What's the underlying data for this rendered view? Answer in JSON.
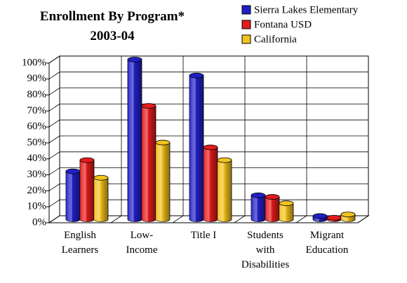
{
  "chart_data": {
    "type": "bar3d",
    "title": "Enrollment By Program*\n2003-04",
    "categories": [
      "English\nLearners",
      "Low-\nIncome",
      "Title I",
      "Students\nwith\nDisabilities",
      "Migrant\nEducation"
    ],
    "series": [
      {
        "name": "Sierra Lakes Elementary",
        "color": "#2020c8",
        "values": [
          30,
          100,
          90,
          15,
          2
        ]
      },
      {
        "name": "Fontana USD",
        "color": "#e41c1c",
        "values": [
          37,
          71,
          45,
          14,
          1
        ]
      },
      {
        "name": "California",
        "color": "#f2c21e",
        "values": [
          26,
          48,
          37,
          10,
          3
        ]
      }
    ],
    "ylim": [
      0,
      100
    ],
    "yticks": [
      {
        "value": 0,
        "label": "0%"
      },
      {
        "value": 10,
        "label": "10%"
      },
      {
        "value": 20,
        "label": "20%"
      },
      {
        "value": 30,
        "label": "30%"
      },
      {
        "value": 40,
        "label": "40%"
      },
      {
        "value": 50,
        "label": "50%"
      },
      {
        "value": 60,
        "label": "60%"
      },
      {
        "value": 70,
        "label": "70%"
      },
      {
        "value": 80,
        "label": "80%"
      },
      {
        "value": 90,
        "label": "90%"
      },
      {
        "value": 100,
        "label": "100%"
      }
    ],
    "grid": true,
    "legend": "top-right"
  }
}
